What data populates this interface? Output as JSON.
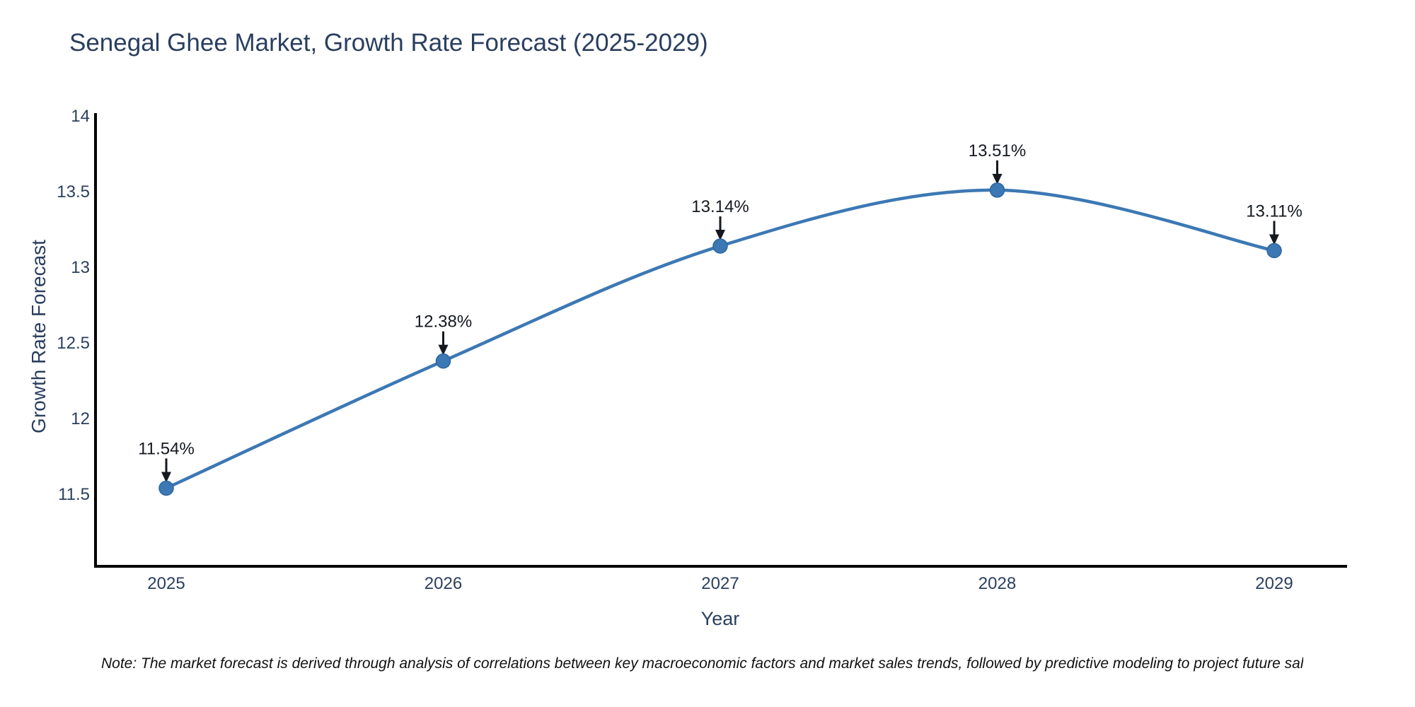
{
  "chart_data": {
    "type": "line",
    "title": "Senegal Ghee Market, Growth Rate Forecast (2025-2029)",
    "xlabel": "Year",
    "ylabel": "Growth Rate Forecast",
    "categories": [
      "2025",
      "2026",
      "2027",
      "2028",
      "2029"
    ],
    "values": [
      11.54,
      12.38,
      13.14,
      13.51,
      13.11
    ],
    "point_labels": [
      "11.54%",
      "12.38%",
      "13.14%",
      "13.51%",
      "13.11%"
    ],
    "y_ticks": [
      14,
      13.5,
      13,
      12.5,
      12,
      11.5
    ],
    "ylim": [
      11.0,
      14
    ],
    "line_shape": "spline",
    "grid": false,
    "legend": "none",
    "colors": {
      "line": "#3c78b4",
      "marker_fill": "#3c78b4",
      "marker_stroke": "#2f669e",
      "axis": "#000000",
      "tick_labels": "#2a3f5f",
      "title": "#2a3f5f",
      "annotation": "#14181f"
    }
  },
  "note": "Note: The market forecast is derived through analysis of correlations between key macroeconomic factors and market sales trends, followed by predictive modeling to project future sal"
}
